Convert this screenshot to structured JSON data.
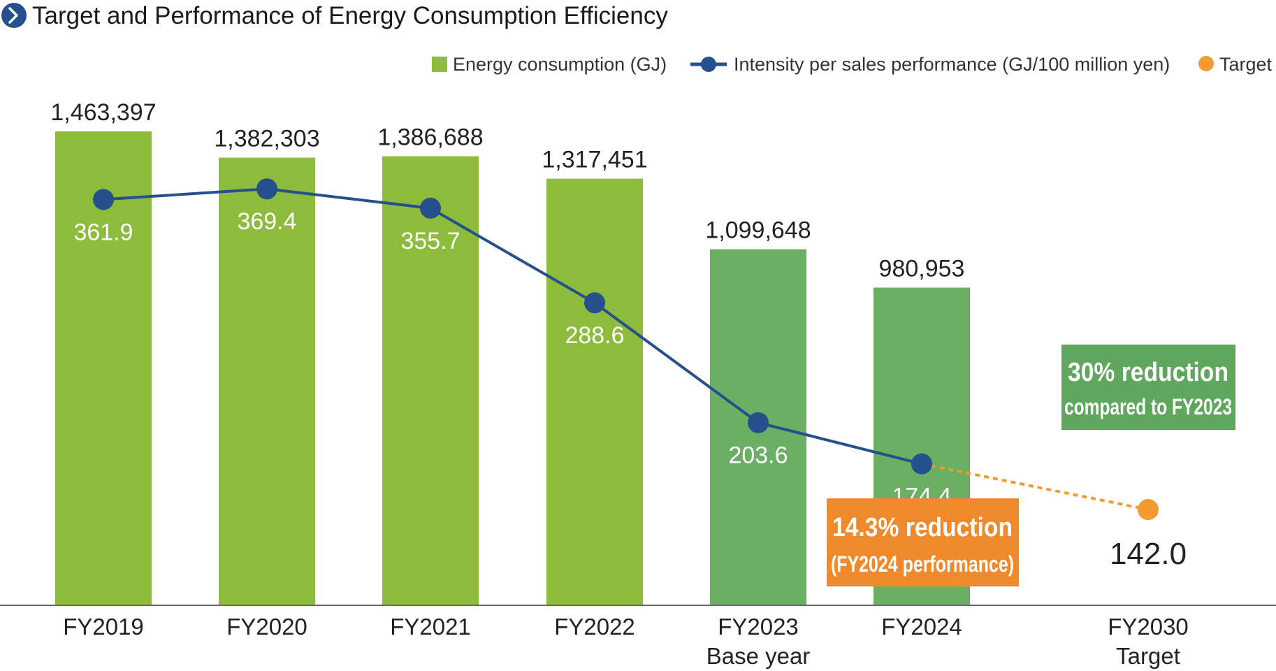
{
  "colors": {
    "bar_light": "#8dbb3b",
    "bar_dark": "#6aaf63",
    "line": "#264f8e",
    "target": "#f39a31",
    "callout_orange": "#f0892c",
    "callout_green": "#5fa75d",
    "title_icon": "#264f8e"
  },
  "icons": {
    "title": "chevron-right-circle-icon"
  },
  "chart_data": {
    "type": "bar",
    "title": "Target and Performance of Energy Consumption Efficiency",
    "legend": {
      "placement": "top-right",
      "entries": [
        "Energy consumption (GJ)",
        "Intensity per sales performance (GJ/100 million yen)",
        "Target"
      ]
    },
    "categories": [
      [
        "FY2019"
      ],
      [
        "FY2020"
      ],
      [
        "FY2021"
      ],
      [
        "FY2022"
      ],
      [
        "FY2023",
        "Base year"
      ],
      [
        "FY2024"
      ],
      [
        "FY2030",
        "Target"
      ]
    ],
    "series": [
      {
        "name": "Energy consumption (GJ)",
        "type": "bar",
        "values": [
          1463397,
          1382303,
          1386688,
          1317451,
          1099648,
          980953,
          null
        ],
        "labels": [
          "1,463,397",
          "1,382,303",
          "1,386,688",
          "1,317,451",
          "1,099,648",
          "980,953",
          ""
        ]
      },
      {
        "name": "Intensity per sales performance (GJ/100 million yen)",
        "type": "line",
        "values": [
          361.9,
          369.4,
          355.7,
          288.6,
          203.6,
          174.4,
          null
        ],
        "labels": [
          "361.9",
          "369.4",
          "355.7",
          "288.6",
          "203.6",
          "174.4",
          ""
        ]
      },
      {
        "name": "Target",
        "type": "point",
        "values": [
          null,
          null,
          null,
          null,
          null,
          null,
          142.0
        ],
        "labels": [
          "",
          "",
          "",
          "",
          "",
          "",
          "142.0"
        ]
      }
    ],
    "annotations": {
      "fy2024": [
        "14.3% reduction",
        "(FY2024 performance)"
      ],
      "fy2030": [
        "30% reduction",
        "compared to FY2023"
      ]
    },
    "bar_ylim": [
      0,
      1700000
    ],
    "line_ylim": [
      0,
      600
    ],
    "grid": false
  }
}
